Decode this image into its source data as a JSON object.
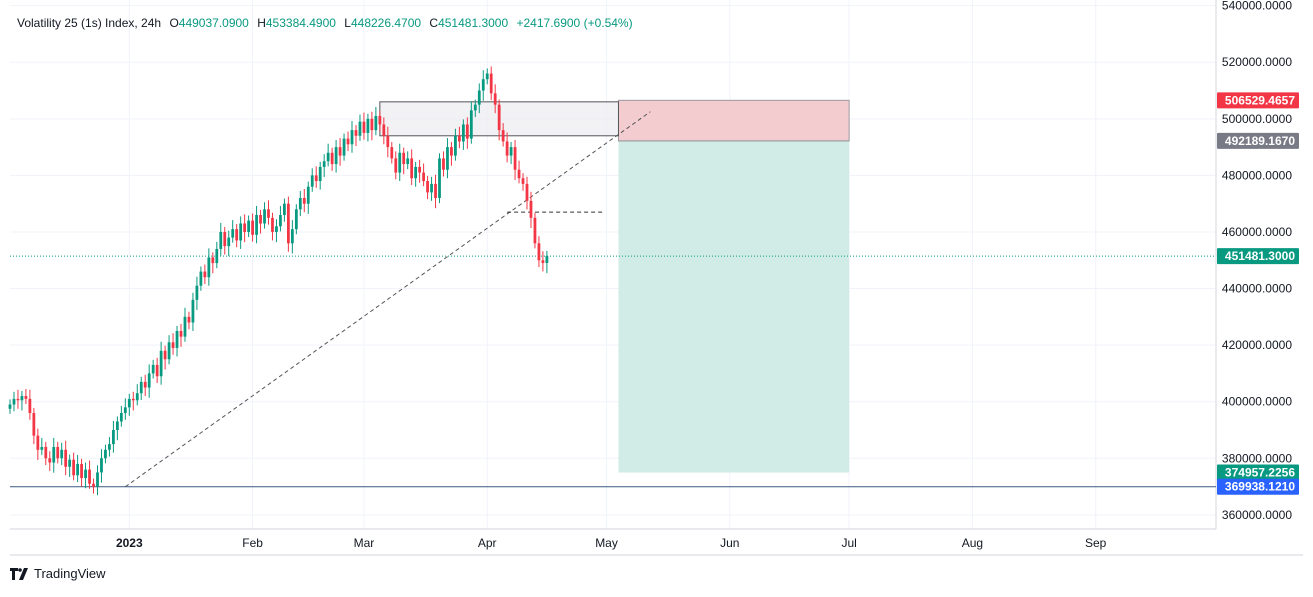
{
  "legend": {
    "symbol": "Volatility 25 (1s) Index, 24h",
    "open_label": "O",
    "open": "449037.0900",
    "high_label": "H",
    "high": "453384.4900",
    "low_label": "L",
    "low": "448226.4700",
    "close_label": "C",
    "close": "451481.3000",
    "change": "+2417.6900 (+0.54%)"
  },
  "brand": {
    "name": "TradingView",
    "logo_icon": "tradingview-logo-icon"
  },
  "colors": {
    "up": "#089981",
    "down": "#f23645",
    "grid": "#f0f3fa",
    "target_zone": "#d1ece6",
    "stop_zone": "#f3ccd0",
    "current_price_line": "#089981",
    "support_line": "#3a5a80",
    "box": "#ececf0"
  },
  "chart_data": {
    "type": "candlestick",
    "title": "Volatility 25 (1s) Index, 24h",
    "y_axis": {
      "ylim": [
        355000,
        542000
      ],
      "ticks": [
        "360000.0000",
        "380000.0000",
        "400000.0000",
        "420000.0000",
        "440000.0000",
        "460000.0000",
        "480000.0000",
        "500000.0000",
        "520000.0000",
        "540000.0000"
      ],
      "tick_values": [
        360000,
        380000,
        400000,
        420000,
        440000,
        460000,
        480000,
        500000,
        520000,
        540000
      ]
    },
    "x_axis": {
      "ticks": [
        "2023",
        "Feb",
        "Mar",
        "Apr",
        "May",
        "Jun",
        "Jul",
        "Aug",
        "Sep"
      ],
      "tick_dates": [
        "2023-01-01",
        "2023-02-01",
        "2023-03-01",
        "2023-04-01",
        "2023-05-01",
        "2023-06-01",
        "2023-07-01",
        "2023-08-01",
        "2023-09-01"
      ],
      "range": [
        "2022-12-02",
        "2023-10-01"
      ]
    },
    "grid": true,
    "ohlc_estimated": {
      "start_date": "2022-12-02",
      "close": [
        399000,
        401000,
        400500,
        402000,
        401000,
        396000,
        388000,
        383000,
        384000,
        380000,
        378500,
        384000,
        380000,
        383000,
        377000,
        379500,
        374000,
        378000,
        373000,
        376000,
        371000,
        369938,
        375000,
        380000,
        383000,
        385000,
        390000,
        393000,
        396000,
        398000,
        401000,
        400500,
        403000,
        407000,
        405000,
        410000,
        413000,
        409000,
        418000,
        415000,
        421000,
        419000,
        425000,
        423000,
        430000,
        428000,
        436000,
        441000,
        446000,
        444000,
        451000,
        449000,
        454000,
        460000,
        455000,
        458000,
        461000,
        457000,
        463000,
        460000,
        464000,
        459000,
        466000,
        463000,
        468000,
        465000,
        460000,
        462000,
        466000,
        470000,
        456000,
        461000,
        468000,
        472000,
        470000,
        476000,
        480000,
        478000,
        483000,
        485000,
        488000,
        484000,
        490000,
        487000,
        493000,
        491000,
        496000,
        494000,
        499000,
        495000,
        500000,
        496000,
        501000,
        498000,
        494000,
        490000,
        486000,
        481000,
        488000,
        484000,
        486000,
        479000,
        483000,
        481000,
        478000,
        474000,
        477000,
        472000,
        486000,
        482000,
        490000,
        487000,
        494000,
        492000,
        498000,
        493000,
        503000,
        505000,
        510000,
        514000,
        516000,
        509000,
        505000,
        496000,
        492000,
        487000,
        490000,
        482000,
        479000,
        477000,
        471000,
        465000,
        456000,
        450000,
        449037,
        451481
      ]
    },
    "position": {
      "type": "short",
      "entry": 492189.167,
      "entry_label": "492189.1670",
      "stop": 506529.4657,
      "stop_label": "506529.4657",
      "target": 374957.2256,
      "target_label": "374957.2256",
      "start_date": "2023-05-04",
      "end_date": "2023-07-01"
    },
    "current_price": 451481.3,
    "current_price_label": "451481.3000",
    "support_level": 369938.121,
    "support_level_label": "369938.1210",
    "resistance_zone": {
      "low": 494000,
      "high": 506000,
      "start_date": "2023-03-05",
      "end_date": "2023-05-04"
    },
    "trendline": {
      "from_date": "2022-12-31",
      "from_price": 369938,
      "to_date": "2023-05-12",
      "to_price": 502500
    },
    "dashed_marker": {
      "price": 467000,
      "from_date": "2023-04-06",
      "to_date": "2023-04-30"
    }
  }
}
